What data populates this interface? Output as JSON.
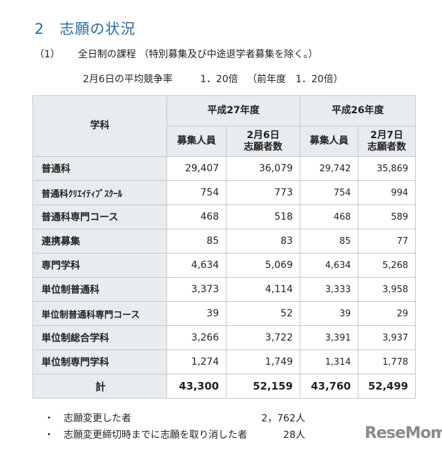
{
  "heading": {
    "number": "2",
    "title": "志願の状況"
  },
  "section": {
    "number": "（1）",
    "title": "全日制の課程 （特別募集及び中途退学者募集を除く。）"
  },
  "rate_line": {
    "label": "2月6日の平均競争率",
    "value": "1．20倍",
    "prev": "（前年度　1．20倍）"
  },
  "table": {
    "header_dept": "学科",
    "year_h27": "平成27年度",
    "year_h26": "平成26年度",
    "col_recruit": "募集人員",
    "col_h27_date": "2月6日",
    "col_h26_date": "2月7日",
    "col_applicants": "志願者数",
    "rows": [
      {
        "label": "普通科",
        "v": [
          "29,407",
          "36,079",
          "29,742",
          "35,869"
        ]
      },
      {
        "label": "普通科ｸﾘｴｲﾃｨﾌﾞｽｸｰﾙ",
        "v": [
          "754",
          "773",
          "754",
          "994"
        ]
      },
      {
        "label": "普通科専門コース",
        "v": [
          "468",
          "518",
          "468",
          "589"
        ]
      },
      {
        "label": "連携募集",
        "v": [
          "85",
          "83",
          "85",
          "77"
        ]
      },
      {
        "label": "専門学科",
        "v": [
          "4,634",
          "5,069",
          "4,634",
          "5,268"
        ]
      },
      {
        "label": "単位制普通科",
        "v": [
          "3,373",
          "4,114",
          "3,333",
          "3,958"
        ]
      },
      {
        "label": "単位制普通科専門コース",
        "v": [
          "39",
          "52",
          "39",
          "29"
        ]
      },
      {
        "label": "単位制総合学科",
        "v": [
          "3,266",
          "3,722",
          "3,391",
          "3,937"
        ]
      },
      {
        "label": "単位制専門学科",
        "v": [
          "1,274",
          "1,749",
          "1,314",
          "1,778"
        ]
      }
    ],
    "total": {
      "label": "計",
      "v": [
        "43,300",
        "52,159",
        "43,760",
        "52,499"
      ]
    }
  },
  "notes": [
    {
      "bullet": "・",
      "text": "志願変更した者",
      "value": "2，762人"
    },
    {
      "bullet": "・",
      "text": "志願変更締切時までに志願を取り消した者",
      "value": "28人"
    }
  ],
  "logo": "ReseMom"
}
